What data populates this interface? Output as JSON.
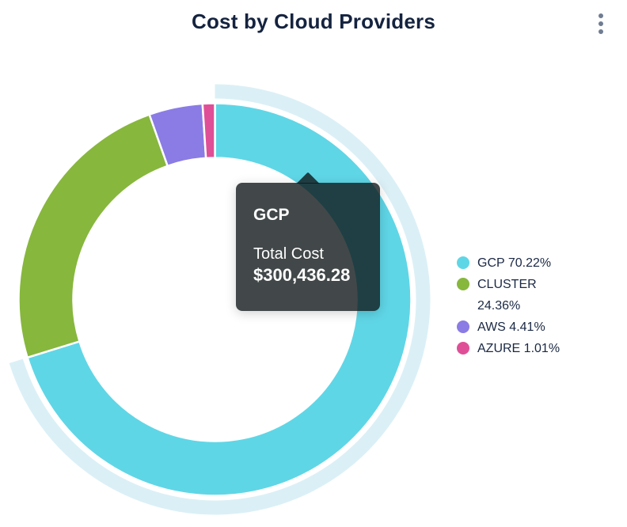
{
  "header": {
    "title": "Cost by Cloud Providers",
    "menu_icon": "kebab-menu-icon"
  },
  "chart_data": {
    "type": "pie",
    "subtype": "donut",
    "title": "Cost by Cloud Providers",
    "legend_position": "right",
    "highlight_ring_color": "#DBF0F6",
    "slice_border_color": "#FFFFFF",
    "series": [
      {
        "name": "GCP",
        "percent": 70.22,
        "color": "#5FD6E6",
        "hovered": true,
        "total_cost": "$300,436.28"
      },
      {
        "name": "CLUSTER",
        "percent": 24.36,
        "color": "#87B73D",
        "hovered": false
      },
      {
        "name": "AWS",
        "percent": 4.41,
        "color": "#8A7CE4",
        "hovered": false
      },
      {
        "name": "AZURE",
        "percent": 1.01,
        "color": "#DF4F97",
        "hovered": false
      }
    ]
  },
  "legend": {
    "items": [
      {
        "label": "GCP 70.22%",
        "color": "#5FD6E6"
      },
      {
        "label": "CLUSTER 24.36%",
        "color": "#87B73D"
      },
      {
        "label": "AWS 4.41%",
        "color": "#8A7CE4"
      },
      {
        "label": "AZURE 1.01%",
        "color": "#DF4F97"
      }
    ]
  },
  "tooltip": {
    "title": "GCP",
    "label": "Total Cost",
    "value": "$300,436.28"
  },
  "colors": {
    "title_text": "#14233F",
    "legend_text": "#1A2844",
    "menu_icon": "#6F7D91",
    "tooltip_background": "rgba(13,20,22,0.78)",
    "tooltip_text": "#FFFFFF"
  }
}
